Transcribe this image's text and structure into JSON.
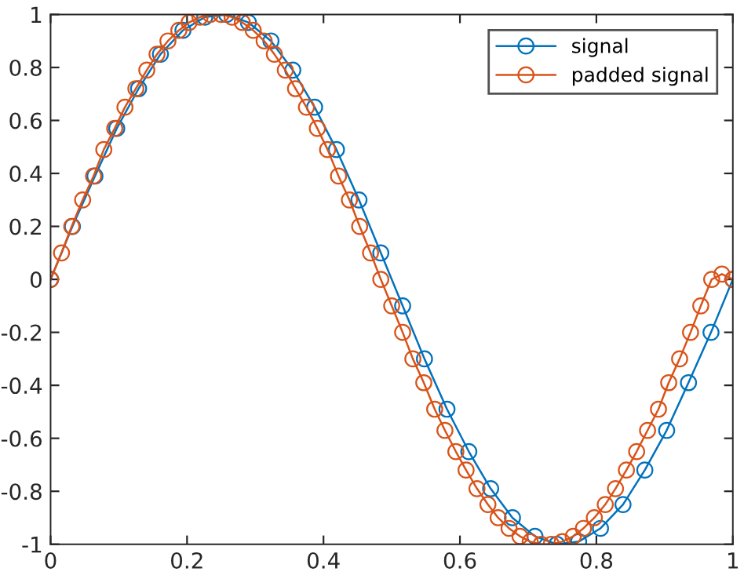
{
  "chart_data": {
    "type": "line",
    "xlim": [
      0,
      1
    ],
    "ylim": [
      -1,
      1
    ],
    "xticks": [
      0,
      0.2,
      0.4,
      0.6,
      0.8,
      1
    ],
    "yticks": [
      -1,
      -0.8,
      -0.6,
      -0.4,
      -0.2,
      0,
      0.2,
      0.4,
      0.6,
      0.8,
      1
    ],
    "grid": false,
    "legend": "top right",
    "marker": "circle",
    "line_style": "solid",
    "series": [
      {
        "name": "signal",
        "color": "#0072bd",
        "x": [
          0,
          0.032,
          0.065,
          0.097,
          0.129,
          0.161,
          0.194,
          0.226,
          0.258,
          0.29,
          0.323,
          0.355,
          0.387,
          0.419,
          0.452,
          0.484,
          0.516,
          0.548,
          0.581,
          0.613,
          0.645,
          0.677,
          0.71,
          0.742,
          0.774,
          0.806,
          0.839,
          0.871,
          0.903,
          0.935,
          0.968,
          1
        ],
        "values": [
          0,
          0.2,
          0.39,
          0.57,
          0.72,
          0.85,
          0.94,
          0.99,
          1.0,
          0.97,
          0.9,
          0.79,
          0.65,
          0.49,
          0.3,
          0.1,
          -0.1,
          -0.3,
          -0.49,
          -0.65,
          -0.79,
          -0.9,
          -0.97,
          -1.0,
          -0.99,
          -0.94,
          -0.85,
          -0.72,
          -0.57,
          -0.39,
          -0.2,
          0
        ]
      },
      {
        "name": "padded signal",
        "color": "#d95319",
        "x": [
          0,
          0.016,
          0.031,
          0.047,
          0.063,
          0.078,
          0.094,
          0.109,
          0.125,
          0.141,
          0.156,
          0.172,
          0.188,
          0.203,
          0.219,
          0.234,
          0.25,
          0.266,
          0.281,
          0.297,
          0.313,
          0.328,
          0.344,
          0.359,
          0.375,
          0.391,
          0.406,
          0.422,
          0.438,
          0.453,
          0.469,
          0.484,
          0.5,
          0.516,
          0.531,
          0.547,
          0.563,
          0.578,
          0.594,
          0.609,
          0.625,
          0.641,
          0.656,
          0.672,
          0.688,
          0.703,
          0.719,
          0.734,
          0.75,
          0.766,
          0.781,
          0.797,
          0.813,
          0.828,
          0.844,
          0.859,
          0.875,
          0.891,
          0.906,
          0.922,
          0.938,
          0.953,
          0.969,
          0.984,
          1
        ],
        "values": [
          0,
          0.1,
          0.2,
          0.3,
          0.39,
          0.49,
          0.57,
          0.65,
          0.72,
          0.79,
          0.85,
          0.9,
          0.94,
          0.97,
          0.99,
          1.0,
          1.0,
          0.99,
          0.97,
          0.94,
          0.9,
          0.85,
          0.79,
          0.72,
          0.65,
          0.57,
          0.49,
          0.39,
          0.3,
          0.2,
          0.1,
          0,
          -0.1,
          -0.2,
          -0.3,
          -0.39,
          -0.49,
          -0.57,
          -0.65,
          -0.72,
          -0.79,
          -0.85,
          -0.9,
          -0.94,
          -0.97,
          -0.99,
          -1.0,
          -1.0,
          -0.99,
          -0.97,
          -0.94,
          -0.9,
          -0.85,
          -0.79,
          -0.72,
          -0.65,
          -0.57,
          -0.49,
          -0.39,
          -0.3,
          -0.2,
          -0.1,
          0,
          0.02,
          0
        ]
      }
    ]
  }
}
